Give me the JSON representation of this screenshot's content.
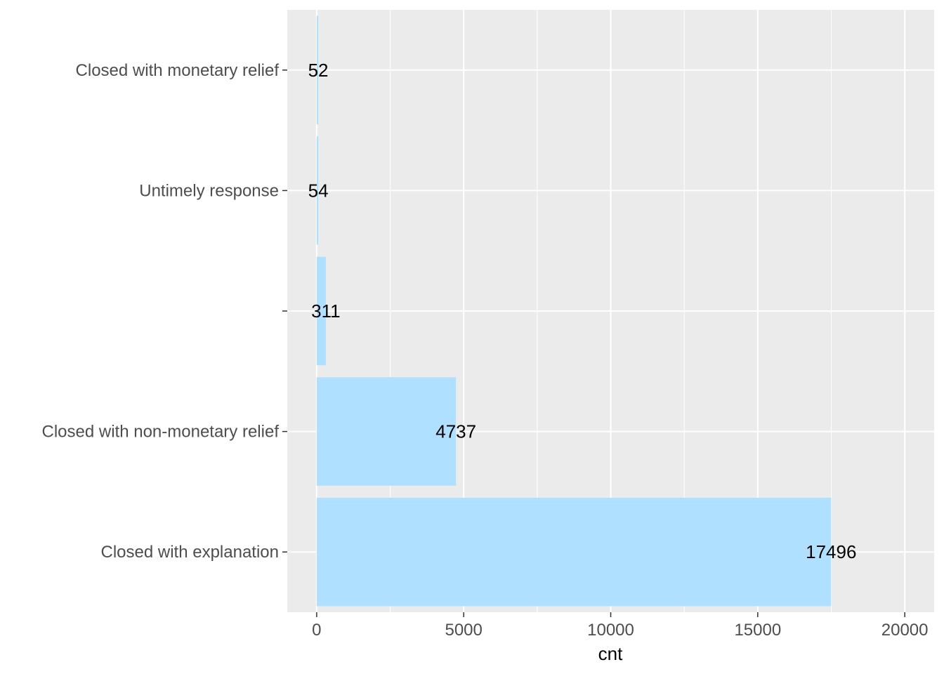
{
  "chart_data": {
    "type": "bar",
    "orientation": "horizontal",
    "categories": [
      "Closed with monetary relief",
      "Untimely response",
      "",
      "Closed with non-monetary relief",
      "Closed with explanation"
    ],
    "values": [
      52,
      54,
      311,
      4737,
      17496
    ],
    "data_labels": [
      "52",
      "54",
      "311",
      "4737",
      "17496"
    ],
    "xlabel": "cnt",
    "ylabel": "",
    "xlim": [
      -1000,
      21000
    ],
    "x_ticks": [
      0,
      5000,
      10000,
      15000,
      20000
    ],
    "x_tick_labels": [
      "0",
      "5000",
      "10000",
      "15000",
      "20000"
    ],
    "grid": true,
    "legend": "none",
    "colors": {
      "bar": "#b0e0ff",
      "panel": "#ebebeb",
      "grid": "#ffffff",
      "tick_text": "#4d4d4d",
      "label_text": "#000000"
    }
  }
}
